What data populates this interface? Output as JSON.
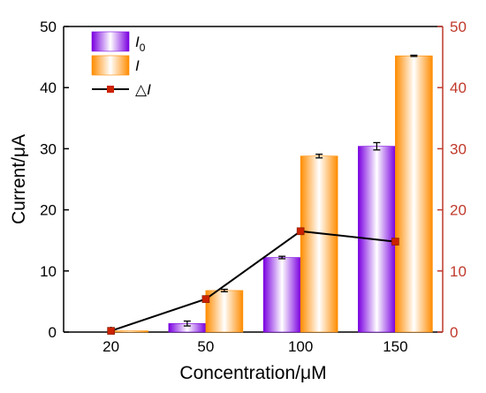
{
  "colors": {
    "i0_edge": "#7a00e0",
    "i0_center": "#ffffff",
    "i_edge": "#ff8c00",
    "i_center": "#ffffff",
    "delta_line": "#000000",
    "delta_marker": "#cc2200",
    "right_axis": "#c0392b",
    "left_axis": "#000000"
  },
  "chart_data": {
    "type": "bar",
    "categories": [
      "20",
      "50",
      "100",
      "150"
    ],
    "series": [
      {
        "name": "I0",
        "kind": "bar",
        "values": [
          0,
          1.4,
          12.2,
          30.4
        ],
        "errors": [
          0,
          0.4,
          0.2,
          0.6
        ]
      },
      {
        "name": "I",
        "kind": "bar",
        "values": [
          0.2,
          6.8,
          28.8,
          45.2
        ],
        "errors": [
          0,
          0.2,
          0.3,
          0.1
        ]
      },
      {
        "name": "△I",
        "kind": "line",
        "axis": "right",
        "values": [
          0.2,
          5.4,
          16.5,
          14.8
        ]
      }
    ],
    "xlabel": "Concentration/μM",
    "ylabel": "Current/μA",
    "ylim": [
      0,
      50
    ],
    "y2lim": [
      0,
      50
    ],
    "yticks": [
      "0",
      "10",
      "20",
      "30",
      "40",
      "50"
    ],
    "y2ticks": [
      "0",
      "10",
      "20",
      "30",
      "40",
      "50"
    ],
    "legend": {
      "position": "top-left",
      "items": [
        {
          "series": 0,
          "label": "I",
          "subscript": "0"
        },
        {
          "series": 1,
          "label": "I",
          "subscript": ""
        },
        {
          "series": 2,
          "label": "I",
          "prefix": "△"
        }
      ]
    },
    "grid": false
  }
}
